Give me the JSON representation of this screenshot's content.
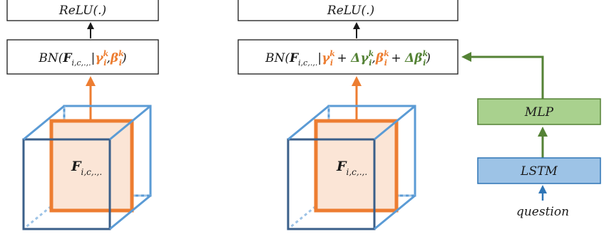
{
  "diagram": {
    "colors": {
      "box_stroke": "#1a1a1a",
      "orange": "#ED7D31",
      "orange_fill": "#FBE5D6",
      "green": "#548235",
      "green_fill": "#A9D18E",
      "blue_fill": "#9DC3E6",
      "blue_stroke": "#2E75B6",
      "blue_arrow": "#2E75B6",
      "cube_back": "#5B9BD5",
      "cube_front": "#3A5F8A"
    },
    "left": {
      "relu_label": "ReLU(.)",
      "bn": {
        "prefix": "BN(",
        "feature": "F",
        "feature_sub": "i,c,.,.",
        "sep": "|",
        "gamma": "γ",
        "gamma_sup": "k",
        "gamma_sub": "i",
        "comma": ",",
        "beta": "β",
        "beta_sup": "k",
        "beta_sub": "i",
        "suffix": ")"
      },
      "cube_label": "F",
      "cube_label_sub": "i,c,.,."
    },
    "right": {
      "relu_label": "ReLU(.)",
      "bn": {
        "prefix": "BN(",
        "feature": "F",
        "feature_sub": "i,c,.,.",
        "sep": "|",
        "gamma": "γ",
        "gamma_sup": "k",
        "gamma_sub": "i",
        "plus1": " + ",
        "dgamma": "Δγ",
        "dgamma_sup": "k",
        "dgamma_sub": "i",
        "comma": ",",
        "beta": "β",
        "beta_sup": "k",
        "beta_sub": "i",
        "plus2": " + ",
        "dbeta": "Δβ",
        "dbeta_sup": "k",
        "dbeta_sub": "i",
        "suffix": ")"
      },
      "cube_label": "F",
      "cube_label_sub": "i,c,.,.",
      "mlp_label": "MLP",
      "lstm_label": "LSTM",
      "question_label": "question"
    }
  }
}
